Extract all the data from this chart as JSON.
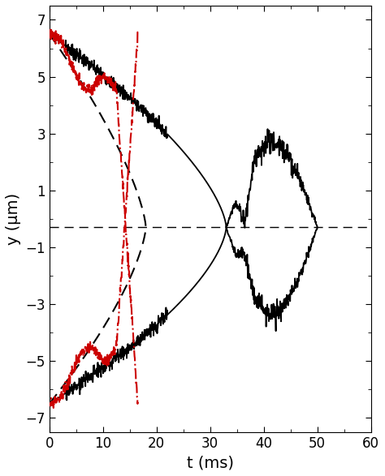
{
  "xlabel": "t (ms)",
  "ylabel": "y (μm)",
  "xlim": [
    0,
    60
  ],
  "ylim": [
    -7.5,
    7.5
  ],
  "yticks": [
    -7,
    -5,
    -3,
    -1,
    1,
    3,
    5,
    7
  ],
  "xticks": [
    0,
    10,
    20,
    30,
    40,
    50,
    60
  ],
  "hline_y": -0.3,
  "background_color": "#ffffff",
  "line_color_solid": "#000000",
  "line_color_dashed": "#000000",
  "line_color_dashdot": "#cc0000"
}
